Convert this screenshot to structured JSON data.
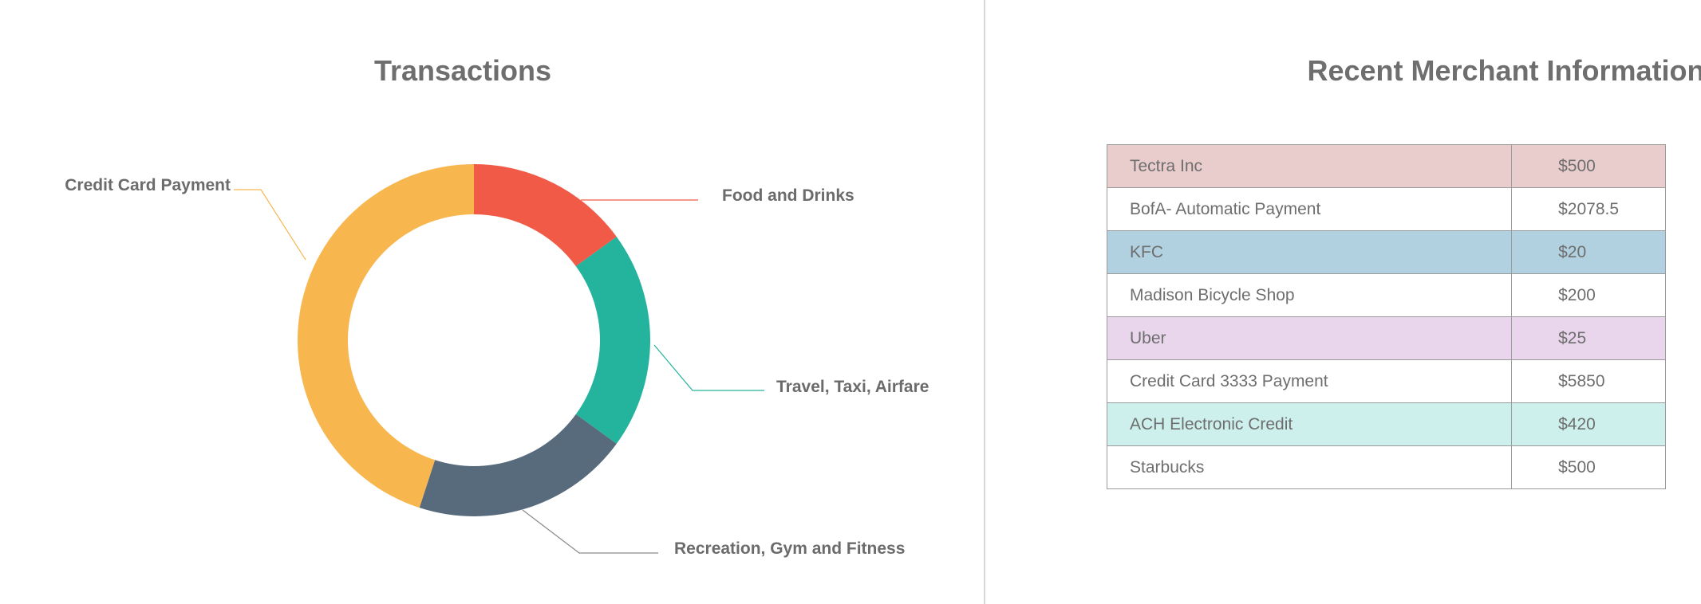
{
  "chart_data": {
    "type": "pie",
    "title": "Transactions",
    "donut": true,
    "categories": [
      "Food and Drinks",
      "Travel, Taxi, Airfare",
      "Recreation, Gym and Fitness",
      "Credit Card Payment"
    ],
    "values": [
      15,
      20,
      20,
      45
    ],
    "colors": [
      "#f05a46",
      "#24b39d",
      "#576b7c",
      "#f8b64f"
    ]
  },
  "table": {
    "title": "Recent Merchant Information",
    "rows": [
      {
        "name": "Tectra Inc",
        "amount": "$500",
        "color": "#e9cccc"
      },
      {
        "name": "BofA- Automatic Payment",
        "amount": "$2078.5",
        "color": "#ffffff"
      },
      {
        "name": "KFC",
        "amount": "$20",
        "color": "#b1d1e0"
      },
      {
        "name": "Madison Bicycle Shop",
        "amount": "$200",
        "color": "#ffffff"
      },
      {
        "name": "Uber",
        "amount": "$25",
        "color": "#e9d5ec"
      },
      {
        "name": "Credit Card 3333 Payment",
        "amount": "$5850",
        "color": "#ffffff"
      },
      {
        "name": "ACH Electronic Credit",
        "amount": "$420",
        "color": "#cdf0ec"
      },
      {
        "name": "Starbucks",
        "amount": "$500",
        "color": "#ffffff"
      }
    ]
  }
}
